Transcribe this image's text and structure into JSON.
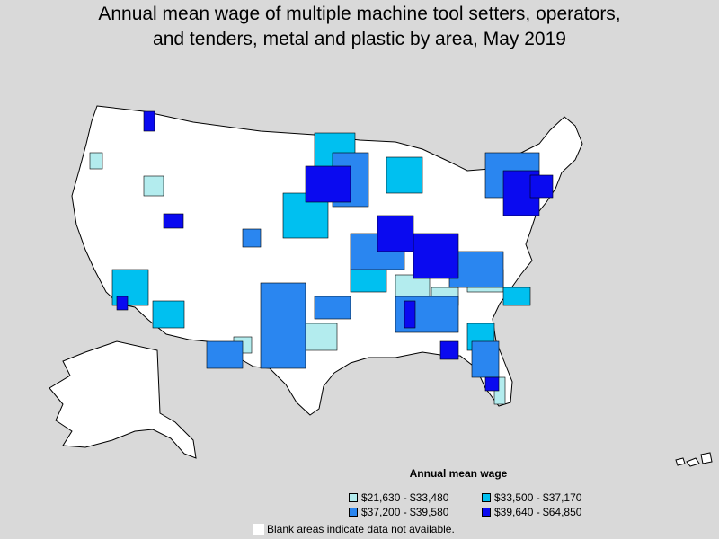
{
  "title": {
    "line1": "Annual mean wage of multiple machine tool setters, operators,",
    "line2": "and tenders, metal and plastic by area, May 2019"
  },
  "legend": {
    "title": "Annual mean wage",
    "items": [
      {
        "label": "$21,630 - $33,480",
        "color": "#b3ecee"
      },
      {
        "label": "$33,500 - $37,170",
        "color": "#00c0f0"
      },
      {
        "label": "$37,200 - $39,580",
        "color": "#2a86f0"
      },
      {
        "label": "$39,640 - $64,850",
        "color": "#0a0af0"
      }
    ]
  },
  "note": "Blank areas indicate data not available.",
  "colors": {
    "background": "#d9d9d9",
    "land": "#ffffff",
    "border": "#000000"
  }
}
